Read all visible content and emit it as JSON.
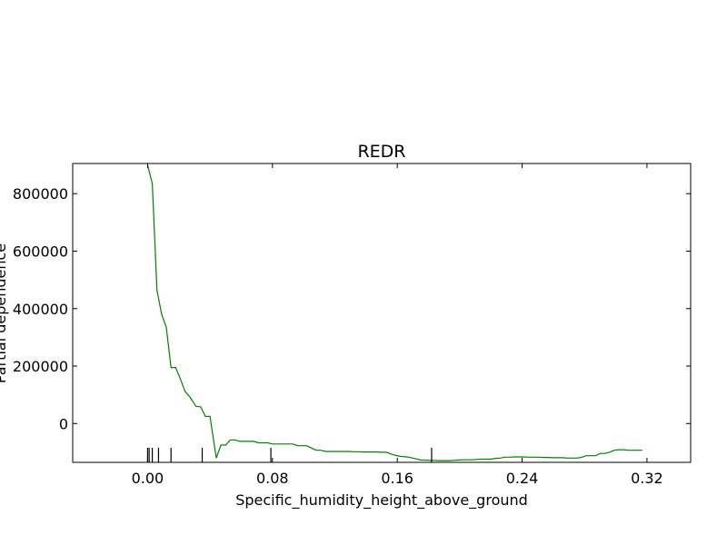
{
  "chart_data": {
    "type": "line",
    "title": "REDR",
    "xlabel": "Specific_humidity_height_above_ground",
    "ylabel": "Partial dependence",
    "xlim": [
      -0.048,
      0.348
    ],
    "ylim": [
      -135000,
      905000
    ],
    "xticks": [
      0.0,
      0.08,
      0.16,
      0.24,
      0.32
    ],
    "xtick_labels": [
      "0.00",
      "0.08",
      "0.16",
      "0.24",
      "0.32"
    ],
    "yticks": [
      0,
      200000,
      400000,
      600000,
      800000
    ],
    "ytick_labels": [
      "0",
      "200000",
      "400000",
      "600000",
      "800000"
    ],
    "grid": false,
    "line_color": "#008000",
    "series": [
      {
        "x": [
          0.0,
          0.003,
          0.006,
          0.009,
          0.012,
          0.015,
          0.018,
          0.021,
          0.024,
          0.027,
          0.031,
          0.034,
          0.037,
          0.04,
          0.044,
          0.047,
          0.05,
          0.053,
          0.056,
          0.059,
          0.062,
          0.065,
          0.068,
          0.071,
          0.074,
          0.077,
          0.08,
          0.083,
          0.087,
          0.09,
          0.093,
          0.096,
          0.099,
          0.102,
          0.105,
          0.108,
          0.111,
          0.114,
          0.117,
          0.12,
          0.123,
          0.126,
          0.129,
          0.132,
          0.135,
          0.138,
          0.141,
          0.144,
          0.147,
          0.15,
          0.153,
          0.156,
          0.159,
          0.162,
          0.166,
          0.169,
          0.172,
          0.175,
          0.178,
          0.181,
          0.184,
          0.187,
          0.19,
          0.193,
          0.196,
          0.199,
          0.202,
          0.205,
          0.208,
          0.211,
          0.214,
          0.217,
          0.22,
          0.223,
          0.226,
          0.229,
          0.232,
          0.235,
          0.238,
          0.241,
          0.244,
          0.247,
          0.251,
          0.254,
          0.257,
          0.26,
          0.263,
          0.266,
          0.269,
          0.272,
          0.275,
          0.278,
          0.281,
          0.284,
          0.287,
          0.29,
          0.293,
          0.296,
          0.299,
          0.302,
          0.305,
          0.308,
          0.311,
          0.314,
          0.317
        ],
        "values": [
          900000,
          835000,
          465000,
          380000,
          335000,
          195000,
          195000,
          155000,
          112000,
          93000,
          60000,
          58000,
          25000,
          25000,
          -120000,
          -75000,
          -75000,
          -57000,
          -57000,
          -62000,
          -62000,
          -62000,
          -62000,
          -67000,
          -67000,
          -67000,
          -71000,
          -71000,
          -71000,
          -71000,
          -71000,
          -77000,
          -77000,
          -77000,
          -85000,
          -93000,
          -93000,
          -97000,
          -97000,
          -97000,
          -97000,
          -97000,
          -97000,
          -98000,
          -98000,
          -99000,
          -99000,
          -99000,
          -99000,
          -100000,
          -100000,
          -106000,
          -111000,
          -114000,
          -116000,
          -119000,
          -123000,
          -127000,
          -127000,
          -128000,
          -128000,
          -129000,
          -129000,
          -129000,
          -128000,
          -127000,
          -126000,
          -126000,
          -126000,
          -125000,
          -124000,
          -124000,
          -124000,
          -121000,
          -120000,
          -117000,
          -117000,
          -116000,
          -116000,
          -116000,
          -117000,
          -117000,
          -117000,
          -118000,
          -118000,
          -119000,
          -119000,
          -119000,
          -120000,
          -120000,
          -120000,
          -118000,
          -112000,
          -112000,
          -112000,
          -104000,
          -104000,
          -100000,
          -93000,
          -91000,
          -91000,
          -93000,
          -93000,
          -93000,
          -93000
        ]
      }
    ],
    "rug_x": [
      0.0,
      0.001,
      0.003,
      0.007,
      0.015,
      0.035,
      0.079,
      0.182
    ]
  }
}
